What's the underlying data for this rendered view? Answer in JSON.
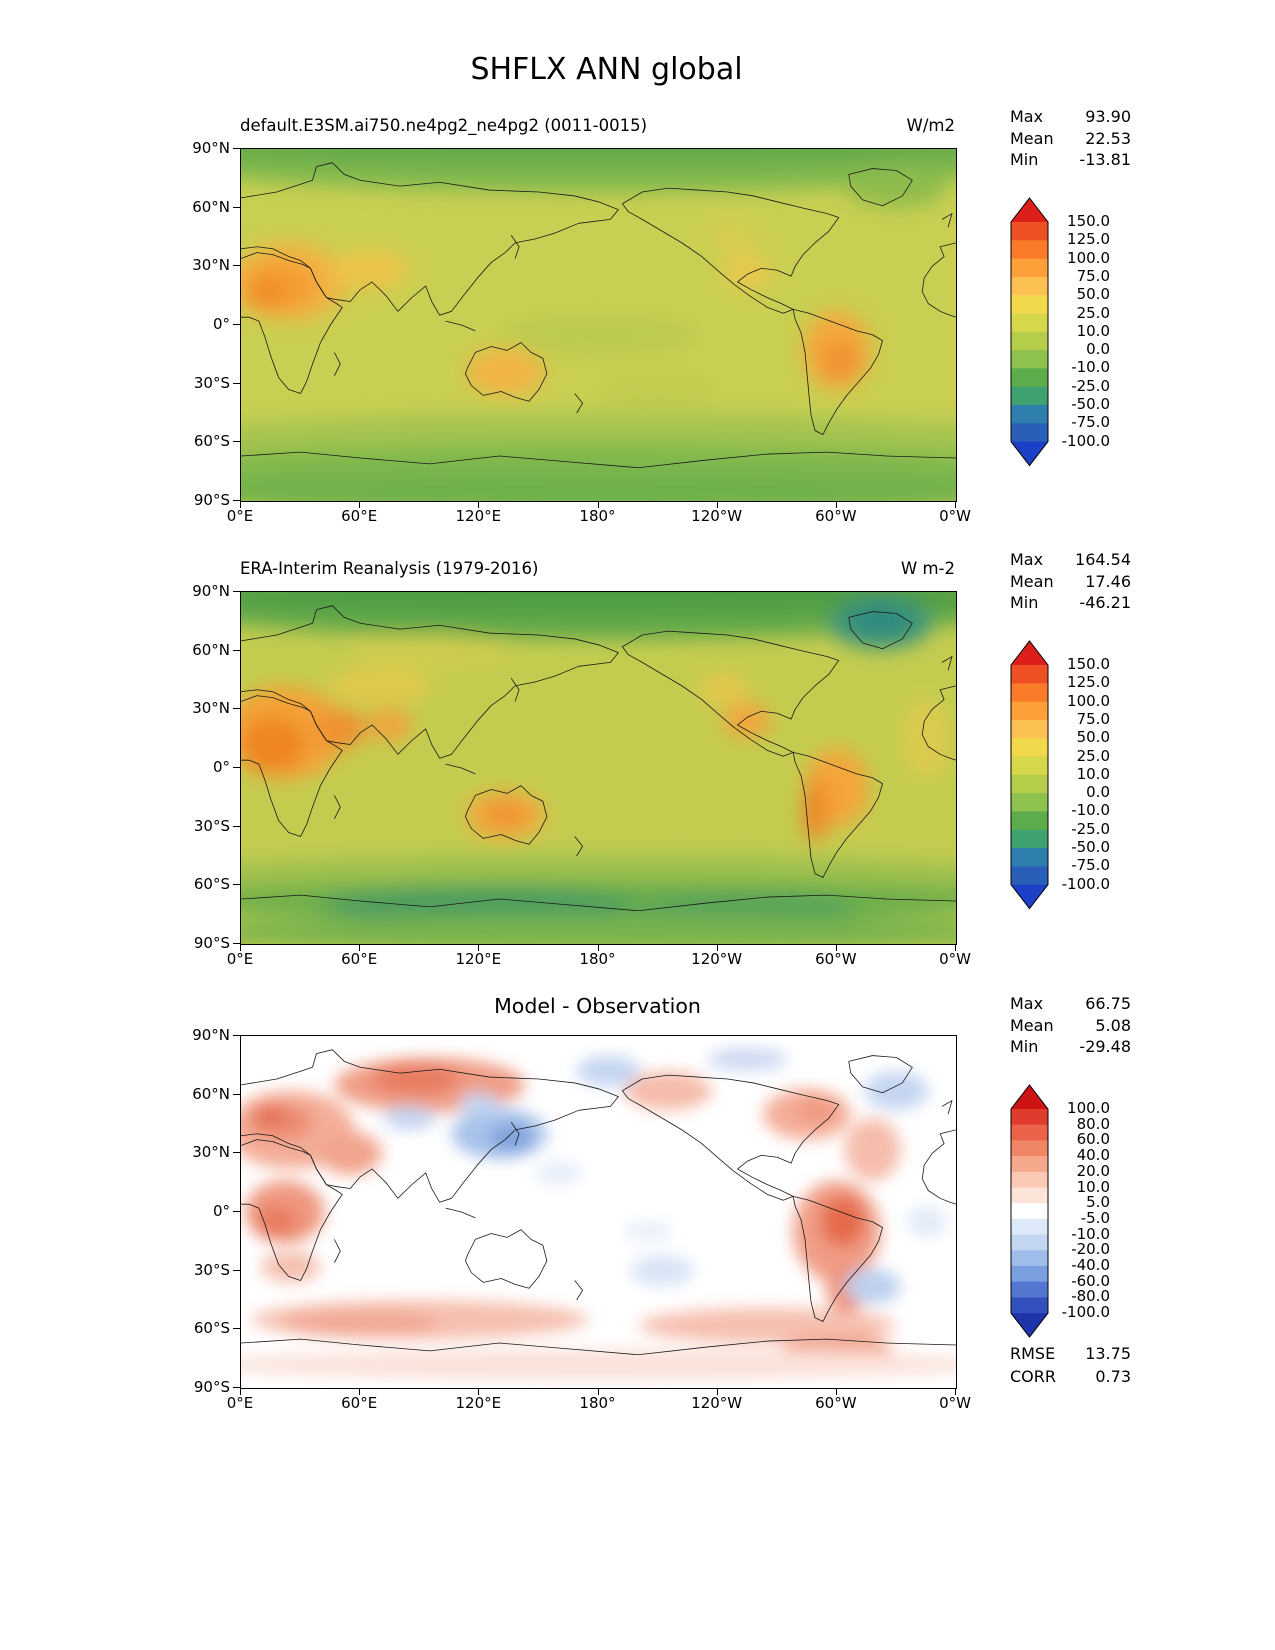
{
  "figure_title": "SHFLX ANN global",
  "axes": {
    "y_tick_labels": [
      "90°N",
      "60°N",
      "30°N",
      "0°",
      "30°S",
      "60°S",
      "90°S"
    ],
    "x_tick_labels": [
      "0°E",
      "60°E",
      "120°E",
      "180°",
      "120°W",
      "60°W",
      "0°W"
    ]
  },
  "coastline_paths": [
    "M0,25 L18,22 L30,18 L36,16 L38,9 L46,7 L52,13 L60,16 L80,19 L100,17 L125,21 L150,22 L168,24 L180,27 L190,31 L186,36 L170,38 L158,43 L148,46 L138,48 L133,53 L126,58 L119,66 L112,75 L106,83 L100,85 L96,78 L93,70 L86,76 L79,83 L73,75 L66,68 L60,72 L55,78 L48,77 L43,76 L38,68 L35,61 L30,57 L24,55 L16,51 L8,50 L0,51",
    "M0,56 L8,53 L16,54 L24,57 L31,59 L35,61 L38,68 L43,76 L48,79 L51,81 L45,90 L40,99 L36,110 L33,119 L30,125 L24,123 L19,117 L15,106 L12,96 L9,88 L4,86 L0,86",
    "M114,112 L118,104 L126,101 L134,103 L141,99 L146,104 L152,107 L154,115 L150,123 L145,129 L138,127 L131,124 L122,126 L116,121 L113,115 Z",
    "M192,28 L202,22 L215,20 L230,21 L245,22 L258,24 L270,27 L282,30 L295,33 L301,35 L296,42 L289,48 L283,54 L279,60 L277,65 L270,62 L262,61 L255,64 L250,68 L257,72 L265,76 L272,79 L278,82 L273,84 L265,81 L256,75 L248,69 L241,63 L232,55 L222,48 L212,42 L202,36 L195,32 Z",
    "M278,82 L286,84 L294,87 L302,90 L310,93 L318,95 L323,98 L321,105 L317,112 L311,119 L305,126 L300,133 L296,140 L293,146 L289,144 L287,136 L286,126 L285,115 L284,104 L282,94 L279,87 Z",
    "M306,13 L318,10 L330,11 L338,16 L333,24 L323,29 L313,26 L307,19 Z",
    "M0,157 L30,155 L60,158 L95,161 L130,157 L165,160 L200,163 L235,159 L265,156 L295,155 L325,157 L360,158",
    "M360,48 L352,50 L354,55 L348,60 L344,66 L343,73 L346,79 L352,83 L357,85 L360,86",
    "M136,44 L140,50 L138,56",
    "M168,125 L172,130 L169,135",
    "M47,104 L50,110 L47,116",
    "M103,88 L111,90 L118,93",
    "M353,36 L358,33 L356,40"
  ],
  "chart_data": [
    {
      "id": "model",
      "type": "filled_contour_map",
      "projection": "equirectangular",
      "title": "default.E3SM.ai750.ne4pg2_ne4pg2 (0011-0015)",
      "units": "W/m2",
      "stats": {
        "max": 93.9,
        "mean": 22.53,
        "min": -13.81
      },
      "stats_rows": [
        {
          "label": "Max",
          "value": "93.90"
        },
        {
          "label": "Mean",
          "value": "22.53"
        },
        {
          "label": "Min",
          "value": "-13.81"
        }
      ],
      "y_tick_labels": [
        "90°N",
        "60°N",
        "30°N",
        "0°",
        "30°S",
        "60°S",
        "90°S"
      ],
      "x_tick_labels": [
        "0°E",
        "60°E",
        "120°E",
        "180°",
        "120°W",
        "60°W",
        "0°W"
      ],
      "colorbar": {
        "tick_labels": [
          "150.0",
          "125.0",
          "100.0",
          "75.0",
          "50.0",
          "25.0",
          "10.0",
          "0.0",
          "-10.0",
          "-25.0",
          "-50.0",
          "-75.0",
          "-100.0"
        ],
        "arrow_top": "#dc1f1a",
        "segment_colors": [
          "#ee4f23",
          "#f97a28",
          "#fda039",
          "#fdc053",
          "#f2d94c",
          "#d5d84a",
          "#b4cd4a",
          "#8ec14d",
          "#5dac4b",
          "#3fa070",
          "#2f7fae",
          "#2a5fb8"
        ],
        "arrow_bottom": "#1c40c8"
      },
      "field_render": {
        "base": "#c9cf52",
        "blur": 5,
        "blobs": [
          [
            180,
            6,
            220,
            16,
            "#7fb84e"
          ],
          [
            180,
            -2,
            220,
            10,
            "#63a94a"
          ],
          [
            180,
            148,
            220,
            13,
            "#a4c44f"
          ],
          [
            180,
            163,
            220,
            12,
            "#7fb84e"
          ],
          [
            180,
            176,
            220,
            10,
            "#6db04c"
          ],
          [
            330,
            20,
            25,
            10,
            "#8fbc4e"
          ],
          [
            180,
            95,
            50,
            10,
            "#bcca50"
          ],
          [
            210,
            125,
            30,
            10,
            "#c2cc50"
          ],
          [
            24,
            68,
            30,
            20,
            "#f2b445"
          ],
          [
            20,
            70,
            18,
            13,
            "#f49c33"
          ],
          [
            12,
            74,
            10,
            8,
            "#f08c28"
          ],
          [
            65,
            62,
            20,
            10,
            "#ecc44a"
          ],
          [
            300,
            103,
            17,
            20,
            "#f4a83c"
          ],
          [
            302,
            108,
            9,
            10,
            "#f09030"
          ],
          [
            133,
            114,
            20,
            12,
            "#f2b445"
          ],
          [
            255,
            63,
            13,
            9,
            "#e8c84e"
          ],
          [
            248,
            45,
            12,
            7,
            "#d8cc50"
          ]
        ]
      }
    },
    {
      "id": "obs",
      "type": "filled_contour_map",
      "projection": "equirectangular",
      "title": "ERA-Interim Reanalysis (1979-2016)",
      "units": "W m-2",
      "stats": {
        "max": 164.54,
        "mean": 17.46,
        "min": -46.21
      },
      "stats_rows": [
        {
          "label": "Max",
          "value": "164.54"
        },
        {
          "label": "Mean",
          "value": "17.46"
        },
        {
          "label": "Min",
          "value": "-46.21"
        }
      ],
      "y_tick_labels": [
        "90°N",
        "60°N",
        "30°N",
        "0°",
        "30°S",
        "60°S",
        "90°S"
      ],
      "x_tick_labels": [
        "0°E",
        "60°E",
        "120°E",
        "180°",
        "120°W",
        "60°W",
        "0°W"
      ],
      "colorbar": {
        "tick_labels": [
          "150.0",
          "125.0",
          "100.0",
          "75.0",
          "50.0",
          "25.0",
          "10.0",
          "0.0",
          "-10.0",
          "-25.0",
          "-50.0",
          "-75.0",
          "-100.0"
        ],
        "arrow_top": "#dc1f1a",
        "segment_colors": [
          "#ee4f23",
          "#f97a28",
          "#fda039",
          "#fdc053",
          "#f2d94c",
          "#d5d84a",
          "#b4cd4a",
          "#8ec14d",
          "#5dac4b",
          "#3fa070",
          "#2f7fae",
          "#2a5fb8"
        ],
        "arrow_bottom": "#1c40c8"
      },
      "field_render": {
        "base": "#c4cc50",
        "blur": 5,
        "blobs": [
          [
            180,
            6,
            220,
            18,
            "#61a848"
          ],
          [
            180,
            0,
            220,
            10,
            "#4f9c44"
          ],
          [
            322,
            16,
            26,
            13,
            "#3e9478"
          ],
          [
            322,
            14,
            14,
            8,
            "#2f8a80"
          ],
          [
            180,
            146,
            220,
            12,
            "#9cc04e"
          ],
          [
            180,
            158,
            220,
            10,
            "#6cae4c"
          ],
          [
            120,
            160,
            80,
            9,
            "#4c9c60"
          ],
          [
            255,
            162,
            55,
            8,
            "#55a25c"
          ],
          [
            180,
            174,
            220,
            9,
            "#77b24d"
          ],
          [
            95,
            30,
            40,
            8,
            "#cfcd50"
          ],
          [
            22,
            72,
            30,
            24,
            "#f4a238"
          ],
          [
            16,
            78,
            16,
            14,
            "#ee8424"
          ],
          [
            50,
            70,
            13,
            10,
            "#f09030"
          ],
          [
            75,
            68,
            11,
            8,
            "#f2a33c"
          ],
          [
            70,
            48,
            26,
            9,
            "#e2c84c"
          ],
          [
            133,
            114,
            20,
            12,
            "#f4a83c"
          ],
          [
            133,
            114,
            10,
            7,
            "#ef9230"
          ],
          [
            300,
            100,
            16,
            20,
            "#f4a53a"
          ],
          [
            289,
            112,
            6,
            16,
            "#ee8426"
          ],
          [
            255,
            66,
            12,
            9,
            "#f2a53c"
          ],
          [
            243,
            50,
            12,
            8,
            "#e6c64c"
          ],
          [
            345,
            75,
            12,
            20,
            "#dcca4e"
          ]
        ]
      }
    },
    {
      "id": "diff",
      "type": "filled_contour_map",
      "projection": "equirectangular",
      "title": "Model - Observation",
      "units": "",
      "stats": {
        "max": 66.75,
        "mean": 5.08,
        "min": -29.48,
        "rmse": 13.75,
        "corr": 0.73
      },
      "stats_rows": [
        {
          "label": "Max",
          "value": "66.75"
        },
        {
          "label": "Mean",
          "value": "5.08"
        },
        {
          "label": "Min",
          "value": "-29.48"
        }
      ],
      "extra_stats_rows": [
        {
          "label": "RMSE",
          "value": "13.75"
        },
        {
          "label": "CORR",
          "value": "0.73"
        }
      ],
      "y_tick_labels": [
        "90°N",
        "60°N",
        "30°N",
        "0°",
        "30°S",
        "60°S",
        "90°S"
      ],
      "x_tick_labels": [
        "0°E",
        "60°E",
        "120°E",
        "180°",
        "120°W",
        "60°W",
        "0°W"
      ],
      "colorbar": {
        "tick_labels": [
          "100.0",
          "80.0",
          "60.0",
          "40.0",
          "20.0",
          "10.0",
          "5.0",
          "-5.0",
          "-10.0",
          "-20.0",
          "-40.0",
          "-60.0",
          "-80.0",
          "-100.0"
        ],
        "arrow_top": "#cc1414",
        "segment_colors": [
          "#e03c2e",
          "#ea6248",
          "#f18667",
          "#f6a88c",
          "#fac9b4",
          "#fde4d8",
          "#ffffff",
          "#dde9f8",
          "#c2d6f2",
          "#9fbdea",
          "#7a9fde",
          "#5377cf",
          "#3351bc"
        ],
        "arrow_bottom": "#1f34a8"
      },
      "field_render": {
        "base": "#ffffff",
        "blur": 4,
        "blobs": [
          [
            25,
            48,
            32,
            20,
            "#f4ad98"
          ],
          [
            20,
            44,
            16,
            9,
            "#eb8a70"
          ],
          [
            14,
            40,
            8,
            5,
            "#e36d50"
          ],
          [
            22,
            90,
            20,
            16,
            "#ef9880"
          ],
          [
            18,
            95,
            10,
            8,
            "#e87b60"
          ],
          [
            55,
            60,
            16,
            11,
            "#f2a48e"
          ],
          [
            95,
            25,
            48,
            14,
            "#f09d85"
          ],
          [
            88,
            22,
            22,
            8,
            "#e87b60"
          ],
          [
            300,
            100,
            22,
            26,
            "#f09d85"
          ],
          [
            303,
            95,
            11,
            13,
            "#e56a4c"
          ],
          [
            305,
            130,
            10,
            12,
            "#ee9078"
          ],
          [
            285,
            40,
            22,
            13,
            "#f4ad98"
          ],
          [
            290,
            38,
            10,
            6,
            "#ef9880"
          ],
          [
            215,
            28,
            22,
            10,
            "#f6bcab"
          ],
          [
            318,
            58,
            14,
            16,
            "#f6bcab"
          ],
          [
            90,
            145,
            85,
            10,
            "#f6c0b0"
          ],
          [
            60,
            147,
            40,
            7,
            "#f2a994"
          ],
          [
            265,
            148,
            65,
            9,
            "#f6c0b0"
          ],
          [
            300,
            160,
            28,
            8,
            "#f2a994"
          ],
          [
            180,
            168,
            200,
            8,
            "#fbe2da"
          ],
          [
            25,
            118,
            15,
            8,
            "#f6c0b0"
          ],
          [
            130,
            50,
            24,
            13,
            "#a8c2ea"
          ],
          [
            136,
            52,
            11,
            7,
            "#7fa3dd"
          ],
          [
            120,
            35,
            10,
            6,
            "#c4d5f2"
          ],
          [
            85,
            42,
            13,
            6,
            "#c4d5f2"
          ],
          [
            330,
            28,
            16,
            10,
            "#c4d5f2"
          ],
          [
            185,
            18,
            16,
            8,
            "#c4d5f2"
          ],
          [
            212,
            120,
            16,
            8,
            "#d8e4f6"
          ],
          [
            318,
            128,
            14,
            9,
            "#bcd0f0"
          ],
          [
            345,
            95,
            10,
            8,
            "#e2ebf8"
          ],
          [
            205,
            100,
            12,
            6,
            "#eaf1fa"
          ],
          [
            255,
            12,
            20,
            6,
            "#cdd9f3"
          ],
          [
            160,
            70,
            12,
            6,
            "#e6eef9"
          ]
        ]
      }
    }
  ]
}
